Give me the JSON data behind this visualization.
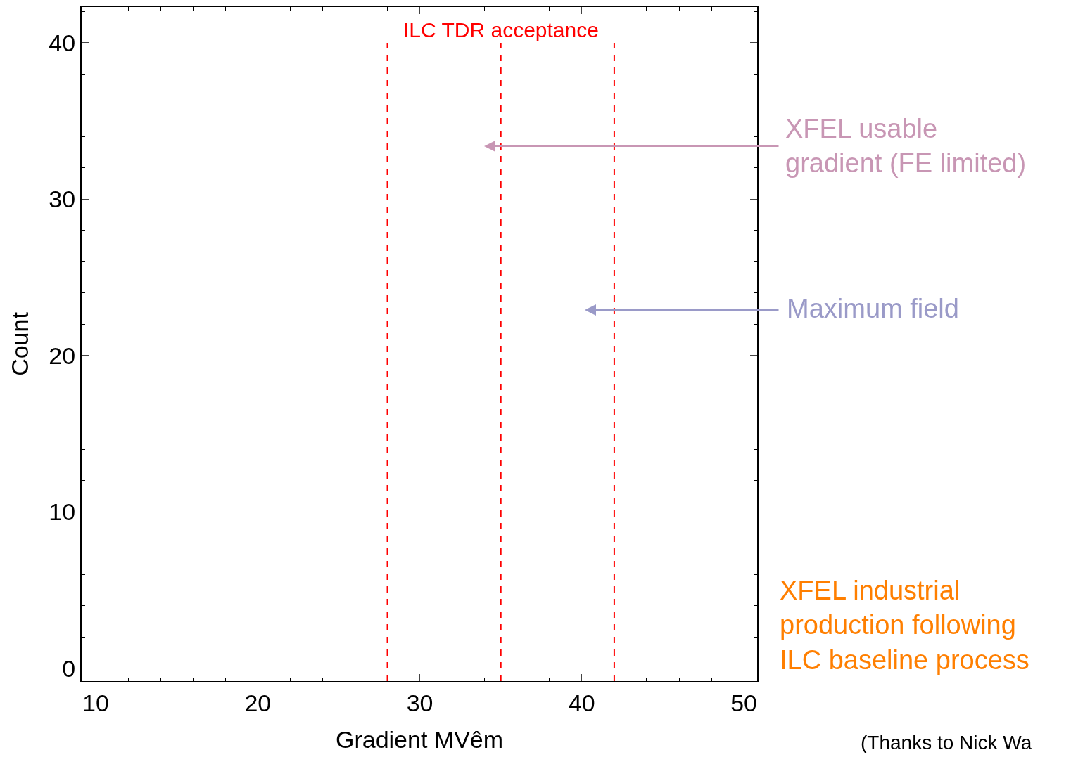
{
  "chart_data": {
    "type": "histogram",
    "xlabel": "Gradient MVêm",
    "ylabel": "Count",
    "xlim": [
      9.13,
      50.82
    ],
    "ylim": [
      -0.81,
      42.29
    ],
    "xticks": [
      10,
      20,
      30,
      40,
      50
    ],
    "yticks": [
      0,
      10,
      20,
      30,
      40
    ],
    "grid": false,
    "ref_lines": [
      {
        "axis": "x",
        "value": 28,
        "color": "#ff0000",
        "line_style": "dashed"
      },
      {
        "axis": "x",
        "value": 35,
        "label": "ILC TDR acceptance",
        "color": "#ff0000",
        "line_style": "dashed"
      },
      {
        "axis": "x",
        "value": 42,
        "color": "#ff0000",
        "line_style": "dashed"
      }
    ],
    "annotations": [
      "XFEL usable\ngradient (FE limited)",
      "Maximum field",
      "XFEL industrial\nproduction following\nILC baseline process",
      "(Thanks to Nick Wa"
    ]
  }
}
